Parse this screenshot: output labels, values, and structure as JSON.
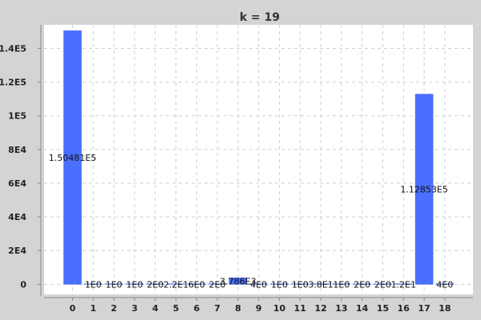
{
  "chart_data": {
    "type": "bar",
    "title": "k = 19",
    "xlabel": "",
    "ylabel": "",
    "categories": [
      "0",
      "1",
      "2",
      "3",
      "4",
      "5",
      "6",
      "7",
      "8",
      "9",
      "10",
      "11",
      "12",
      "13",
      "14",
      "15",
      "16",
      "17",
      "18"
    ],
    "values": [
      150481,
      1,
      1,
      1,
      2,
      22,
      6,
      2,
      3786,
      4,
      1,
      1,
      38,
      1,
      2,
      2,
      12,
      112853,
      4
    ],
    "value_labels": [
      "1.50481E5",
      "1E0",
      "1E0",
      "1E0",
      "2E0",
      "2.2E1",
      "6E0",
      "2E0",
      "3.786E3",
      "4E0",
      "1E0",
      "1E0",
      "3.8E1",
      "1E0",
      "2E0",
      "2E0",
      "1.2E1",
      "1.12853E5",
      "4E0"
    ],
    "ylim": [
      -6000,
      154000
    ],
    "y_ticks": [
      0,
      20000,
      40000,
      60000,
      80000,
      100000,
      120000,
      140000
    ],
    "y_tick_labels": [
      "0",
      "2E4",
      "4E4",
      "6E4",
      "8E4",
      "1E5",
      "1.2E5",
      "1.4E5"
    ],
    "grid": true,
    "legend": "none",
    "colors": {
      "bar": "#4a6fff",
      "bar_edge": "#3a5ae6",
      "plot_bg": "#ffffff",
      "outer_bg": "#d4d4d4",
      "grid": "#cfcfcf"
    }
  }
}
